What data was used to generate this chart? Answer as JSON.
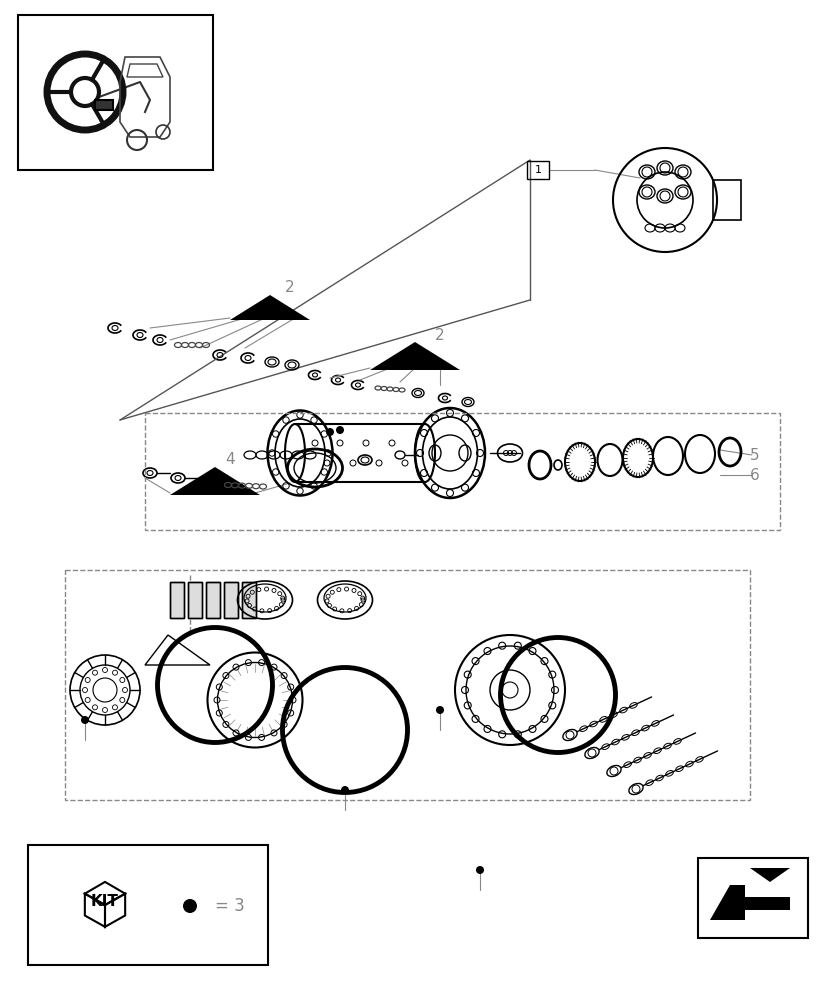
{
  "background_color": "#ffffff",
  "line_color": "#000000",
  "gray_color": "#888888",
  "fig_width": 8.28,
  "fig_height": 10.0,
  "dpi": 100
}
